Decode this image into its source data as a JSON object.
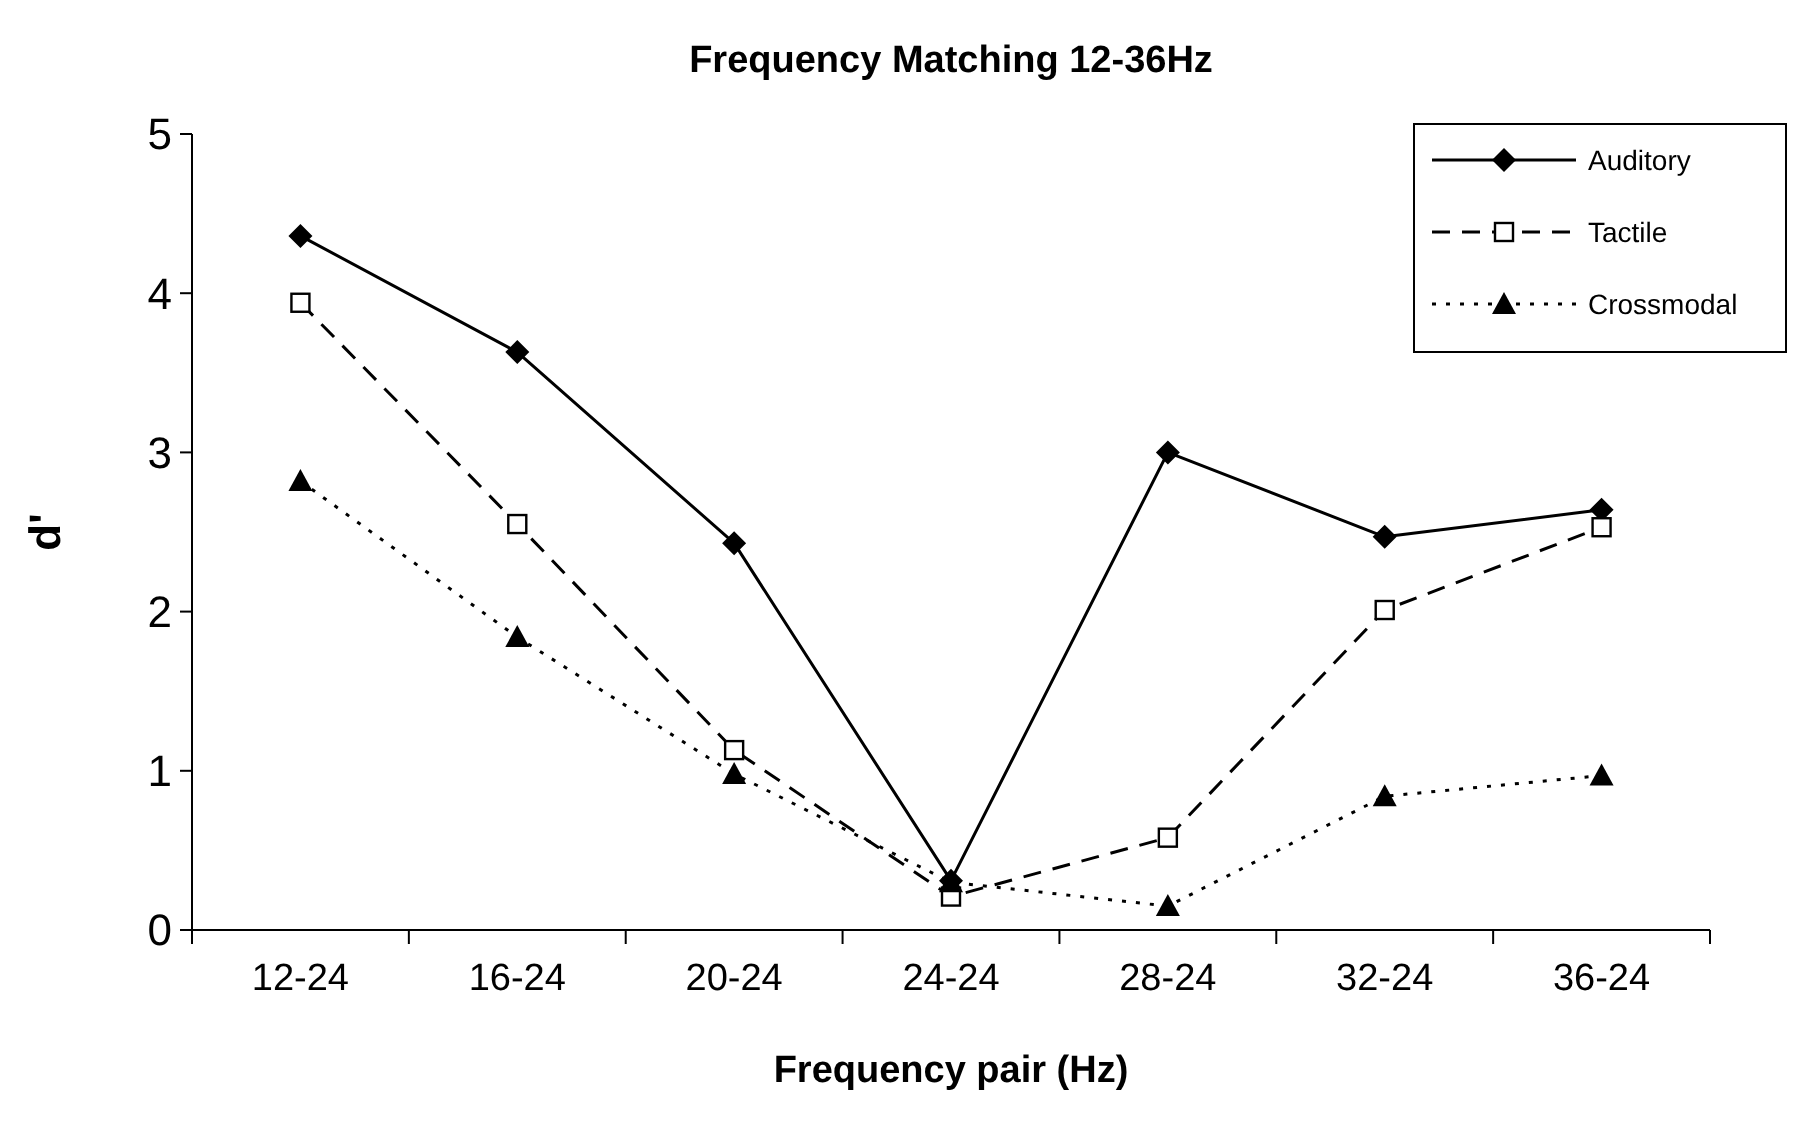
{
  "chart_data": {
    "type": "line",
    "title": "Frequency Matching 12-36Hz",
    "xlabel": "Frequency pair (Hz)",
    "ylabel": "d'",
    "categories": [
      "12-24",
      "16-24",
      "20-24",
      "24-24",
      "28-24",
      "32-24",
      "36-24"
    ],
    "series": [
      {
        "name": "Auditory",
        "color": "#000000",
        "marker": "diamond",
        "line_style": "solid",
        "values": [
          4.36,
          3.63,
          2.43,
          0.31,
          3.0,
          2.47,
          2.64
        ]
      },
      {
        "name": "Tactile",
        "color": "#000000",
        "marker": "square",
        "line_style": "dashed",
        "values": [
          3.94,
          2.55,
          1.13,
          0.21,
          0.58,
          2.01,
          2.53
        ]
      },
      {
        "name": "Crossmodal",
        "color": "#000000",
        "marker": "triangle",
        "line_style": "dotted",
        "values": [
          2.82,
          1.84,
          0.98,
          0.3,
          0.15,
          0.84,
          0.97
        ]
      }
    ],
    "ylim": [
      0,
      5
    ],
    "yticks": [
      0,
      1,
      2,
      3,
      4,
      5
    ],
    "grid": false,
    "legend": "top right"
  }
}
